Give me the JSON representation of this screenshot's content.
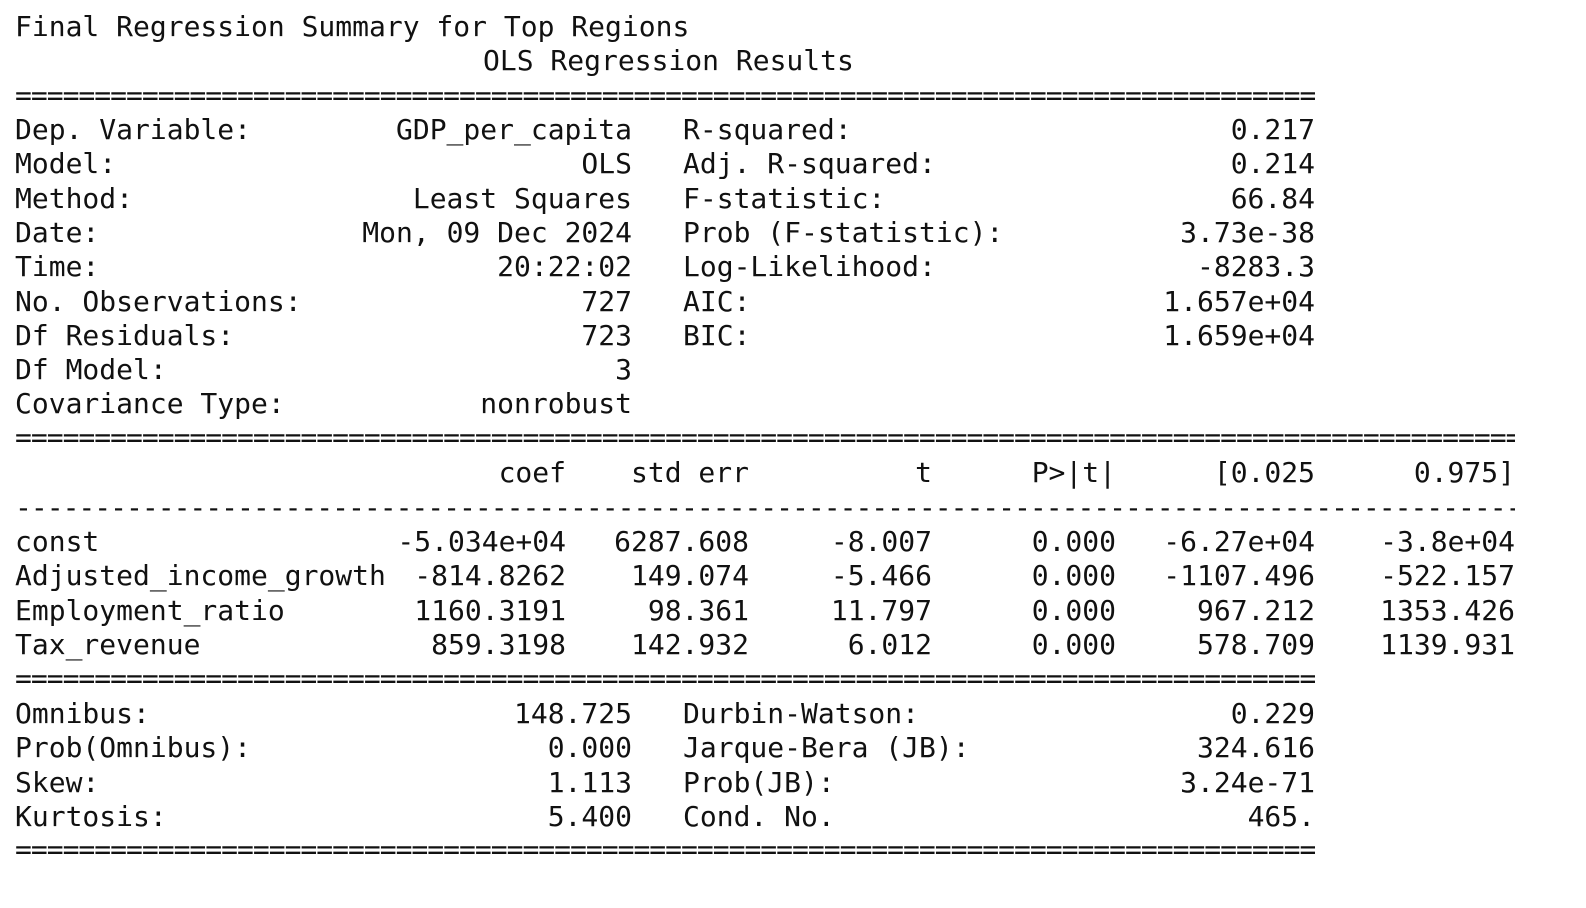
{
  "title": "Final Regression Summary for Top Regions",
  "subtitle": "OLS Regression Results",
  "rules": {
    "double_short": "==========================================================================================",
    "double_long": "==========================================================================================================",
    "single_long": "----------------------------------------------------------------------------------------------------------"
  },
  "summary": [
    {
      "left_label": "Dep. Variable:",
      "left_value": "GDP_per_capita",
      "right_label": "R-squared:",
      "right_value": "0.217"
    },
    {
      "left_label": "Model:",
      "left_value": "OLS",
      "right_label": "Adj. R-squared:",
      "right_value": "0.214"
    },
    {
      "left_label": "Method:",
      "left_value": "Least Squares",
      "right_label": "F-statistic:",
      "right_value": "66.84"
    },
    {
      "left_label": "Date:",
      "left_value": "Mon, 09 Dec 2024",
      "right_label": "Prob (F-statistic):",
      "right_value": "3.73e-38"
    },
    {
      "left_label": "Time:",
      "left_value": "20:22:02",
      "right_label": "Log-Likelihood:",
      "right_value": "-8283.3"
    },
    {
      "left_label": "No. Observations:",
      "left_value": "727",
      "right_label": "AIC:",
      "right_value": "1.657e+04"
    },
    {
      "left_label": "Df Residuals:",
      "left_value": "723",
      "right_label": "BIC:",
      "right_value": "1.659e+04"
    },
    {
      "left_label": "Df Model:",
      "left_value": "3",
      "right_label": "",
      "right_value": ""
    },
    {
      "left_label": "Covariance Type:",
      "left_value": "nonrobust",
      "right_label": "",
      "right_value": ""
    }
  ],
  "coef_table": {
    "headers": [
      "coef",
      "std err",
      "t",
      "P>|t|",
      "[0.025",
      "0.975]"
    ],
    "rows": [
      {
        "name": "const",
        "coef": "-5.034e+04",
        "std_err": "6287.608",
        "t": "-8.007",
        "p": "0.000",
        "lo": "-6.27e+04",
        "hi": "-3.8e+04"
      },
      {
        "name": "Adjusted_income_growth",
        "coef": "-814.8262",
        "std_err": "149.074",
        "t": "-5.466",
        "p": "0.000",
        "lo": "-1107.496",
        "hi": "-522.157"
      },
      {
        "name": "Employment_ratio",
        "coef": "1160.3191",
        "std_err": "98.361",
        "t": "11.797",
        "p": "0.000",
        "lo": "967.212",
        "hi": "1353.426"
      },
      {
        "name": "Tax_revenue",
        "coef": "859.3198",
        "std_err": "142.932",
        "t": "6.012",
        "p": "0.000",
        "lo": "578.709",
        "hi": "1139.931"
      }
    ]
  },
  "diagnostics": [
    {
      "left_label": "Omnibus:",
      "left_value": "148.725",
      "right_label": "Durbin-Watson:",
      "right_value": "0.229"
    },
    {
      "left_label": "Prob(Omnibus):",
      "left_value": "0.000",
      "right_label": "Jarque-Bera (JB):",
      "right_value": "324.616"
    },
    {
      "left_label": "Skew:",
      "left_value": "1.113",
      "right_label": "Prob(JB):",
      "right_value": "3.24e-71"
    },
    {
      "left_label": "Kurtosis:",
      "left_value": "5.400",
      "right_label": "Cond. No.",
      "right_value": "465."
    }
  ]
}
